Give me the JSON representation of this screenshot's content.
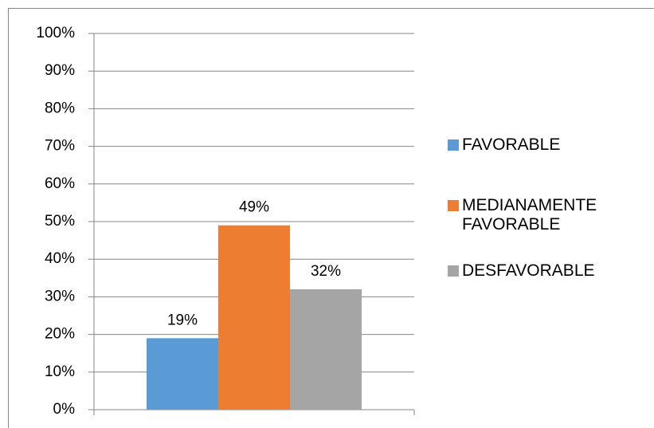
{
  "chart_data": {
    "type": "bar",
    "categories": [
      null
    ],
    "series": [
      {
        "name": "FAVORABLE",
        "color": "#5b9bd5",
        "values": [
          19
        ],
        "value_labels": [
          "19%"
        ]
      },
      {
        "name": "MEDIANAMENTE FAVORABLE",
        "color": "#ed7d31",
        "values": [
          49
        ],
        "value_labels": [
          "49%"
        ]
      },
      {
        "name": "DESFAVORABLE",
        "color": "#a5a5a5",
        "values": [
          32
        ],
        "value_labels": [
          "32%"
        ]
      }
    ],
    "ylim": [
      0,
      100
    ],
    "yticks": [
      {
        "value": 0,
        "label": "0%"
      },
      {
        "value": 10,
        "label": "10%"
      },
      {
        "value": 20,
        "label": "20%"
      },
      {
        "value": 30,
        "label": "30%"
      },
      {
        "value": 40,
        "label": "40%"
      },
      {
        "value": 50,
        "label": "50%"
      },
      {
        "value": 60,
        "label": "60%"
      },
      {
        "value": 70,
        "label": "70%"
      },
      {
        "value": 80,
        "label": "80%"
      },
      {
        "value": 90,
        "label": "90%"
      },
      {
        "value": 100,
        "label": "100%"
      }
    ],
    "grid": true,
    "legend": "right"
  }
}
